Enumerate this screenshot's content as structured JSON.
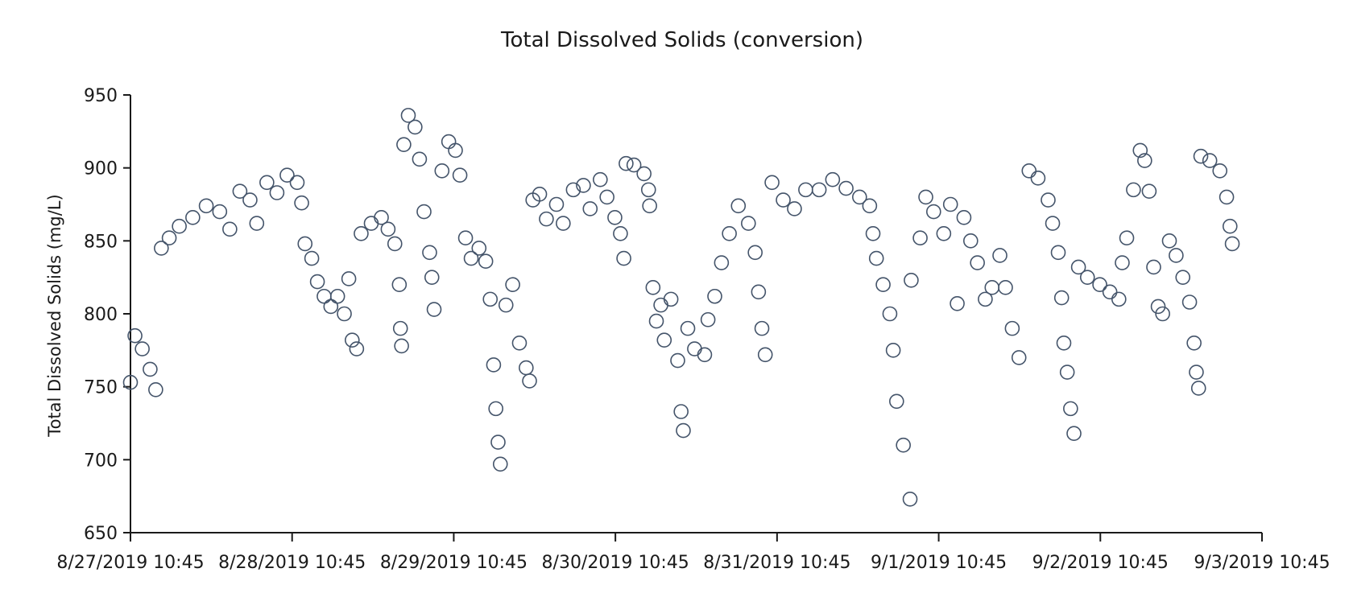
{
  "chart_data": {
    "type": "scatter",
    "title": "Total Dissolved Solids (conversion)",
    "xlabel": "",
    "ylabel": "Total Dissolved Solids  (mg/L)",
    "ylim": [
      650,
      950
    ],
    "yticks": [
      650,
      700,
      750,
      800,
      850,
      900,
      950
    ],
    "xlim": [
      "8/27/2019 10:45",
      "9/3/2019 10:45"
    ],
    "xticks": [
      "8/27/2019 10:45",
      "8/28/2019 10:45",
      "8/29/2019 10:45",
      "8/30/2019 10:45",
      "8/31/2019 10:45",
      "9/1/2019 10:45",
      "9/2/2019 10:45",
      "9/3/2019 10:45"
    ],
    "grid": false,
    "marker": "open-circle",
    "color": "#44546a",
    "series": [
      {
        "points": [
          [
            "8/27/2019 10:45",
            753
          ],
          [
            "8/27/2019 11:25",
            785
          ],
          [
            "8/27/2019 12:30",
            776
          ],
          [
            "8/27/2019 13:40",
            762
          ],
          [
            "8/27/2019 14:30",
            748
          ],
          [
            "8/27/2019 15:20",
            845
          ],
          [
            "8/27/2019 16:30",
            852
          ],
          [
            "8/27/2019 18:00",
            860
          ],
          [
            "8/27/2019 20:00",
            866
          ],
          [
            "8/27/2019 22:00",
            874
          ],
          [
            "8/28/2019 00:00",
            870
          ],
          [
            "8/28/2019 01:30",
            858
          ],
          [
            "8/28/2019 03:00",
            884
          ],
          [
            "8/28/2019 04:30",
            878
          ],
          [
            "8/28/2019 05:30",
            862
          ],
          [
            "8/28/2019 07:00",
            890
          ],
          [
            "8/28/2019 08:30",
            883
          ],
          [
            "8/28/2019 10:00",
            895
          ],
          [
            "8/28/2019 11:30",
            890
          ],
          [
            "8/28/2019 12:10",
            876
          ],
          [
            "8/28/2019 12:40",
            848
          ],
          [
            "8/28/2019 13:40",
            838
          ],
          [
            "8/28/2019 14:30",
            822
          ],
          [
            "8/28/2019 15:30",
            812
          ],
          [
            "8/28/2019 16:30",
            805
          ],
          [
            "8/28/2019 17:30",
            812
          ],
          [
            "8/28/2019 18:30",
            800
          ],
          [
            "8/28/2019 19:10",
            824
          ],
          [
            "8/28/2019 19:40",
            782
          ],
          [
            "8/28/2019 20:20",
            776
          ],
          [
            "8/28/2019 21:00",
            855
          ],
          [
            "8/28/2019 22:30",
            862
          ],
          [
            "8/29/2019 00:00",
            866
          ],
          [
            "8/29/2019 01:00",
            858
          ],
          [
            "8/29/2019 02:00",
            848
          ],
          [
            "8/29/2019 02:40",
            820
          ],
          [
            "8/29/2019 02:50",
            790
          ],
          [
            "8/29/2019 03:00",
            778
          ],
          [
            "8/29/2019 03:20",
            916
          ],
          [
            "8/29/2019 04:00",
            936
          ],
          [
            "8/29/2019 05:00",
            928
          ],
          [
            "8/29/2019 05:40",
            906
          ],
          [
            "8/29/2019 06:20",
            870
          ],
          [
            "8/29/2019 07:10",
            842
          ],
          [
            "8/29/2019 07:30",
            825
          ],
          [
            "8/29/2019 07:50",
            803
          ],
          [
            "8/29/2019 09:00",
            898
          ],
          [
            "8/29/2019 10:00",
            918
          ],
          [
            "8/29/2019 11:00",
            912
          ],
          [
            "8/29/2019 11:40",
            895
          ],
          [
            "8/29/2019 12:30",
            852
          ],
          [
            "8/29/2019 13:20",
            838
          ],
          [
            "8/29/2019 14:30",
            845
          ],
          [
            "8/29/2019 15:30",
            836
          ],
          [
            "8/29/2019 16:10",
            810
          ],
          [
            "8/29/2019 16:40",
            765
          ],
          [
            "8/29/2019 17:00",
            735
          ],
          [
            "8/29/2019 17:20",
            712
          ],
          [
            "8/29/2019 17:40",
            697
          ],
          [
            "8/29/2019 18:30",
            806
          ],
          [
            "8/29/2019 19:30",
            820
          ],
          [
            "8/29/2019 20:30",
            780
          ],
          [
            "8/29/2019 21:30",
            763
          ],
          [
            "8/29/2019 22:00",
            754
          ],
          [
            "8/29/2019 22:30",
            878
          ],
          [
            "8/29/2019 23:30",
            882
          ],
          [
            "8/30/2019 00:30",
            865
          ],
          [
            "8/30/2019 02:00",
            875
          ],
          [
            "8/30/2019 03:00",
            862
          ],
          [
            "8/30/2019 04:30",
            885
          ],
          [
            "8/30/2019 06:00",
            888
          ],
          [
            "8/30/2019 07:00",
            872
          ],
          [
            "8/30/2019 08:30",
            892
          ],
          [
            "8/30/2019 09:30",
            880
          ],
          [
            "8/30/2019 10:40",
            866
          ],
          [
            "8/30/2019 11:30",
            855
          ],
          [
            "8/30/2019 12:00",
            838
          ],
          [
            "8/30/2019 12:20",
            903
          ],
          [
            "8/30/2019 13:30",
            902
          ],
          [
            "8/30/2019 15:00",
            896
          ],
          [
            "8/30/2019 15:40",
            885
          ],
          [
            "8/30/2019 15:50",
            874
          ],
          [
            "8/30/2019 16:20",
            818
          ],
          [
            "8/30/2019 16:50",
            795
          ],
          [
            "8/30/2019 17:30",
            806
          ],
          [
            "8/30/2019 18:00",
            782
          ],
          [
            "8/30/2019 19:00",
            810
          ],
          [
            "8/30/2019 20:00",
            768
          ],
          [
            "8/30/2019 20:30",
            733
          ],
          [
            "8/30/2019 20:50",
            720
          ],
          [
            "8/30/2019 21:30",
            790
          ],
          [
            "8/30/2019 22:30",
            776
          ],
          [
            "8/31/2019 00:00",
            772
          ],
          [
            "8/31/2019 00:30",
            796
          ],
          [
            "8/31/2019 01:30",
            812
          ],
          [
            "8/31/2019 02:30",
            835
          ],
          [
            "8/31/2019 03:40",
            855
          ],
          [
            "8/31/2019 05:00",
            874
          ],
          [
            "8/31/2019 06:30",
            862
          ],
          [
            "8/31/2019 07:30",
            842
          ],
          [
            "8/31/2019 08:00",
            815
          ],
          [
            "8/31/2019 08:30",
            790
          ],
          [
            "8/31/2019 09:00",
            772
          ],
          [
            "8/31/2019 10:00",
            890
          ],
          [
            "8/31/2019 11:40",
            878
          ],
          [
            "8/31/2019 13:20",
            872
          ],
          [
            "8/31/2019 15:00",
            885
          ],
          [
            "8/31/2019 17:00",
            885
          ],
          [
            "8/31/2019 19:00",
            892
          ],
          [
            "8/31/2019 21:00",
            886
          ],
          [
            "8/31/2019 23:00",
            880
          ],
          [
            "9/1/2019 00:30",
            874
          ],
          [
            "9/1/2019 01:00",
            855
          ],
          [
            "9/1/2019 01:30",
            838
          ],
          [
            "9/1/2019 02:30",
            820
          ],
          [
            "9/1/2019 03:30",
            800
          ],
          [
            "9/1/2019 04:00",
            775
          ],
          [
            "9/1/2019 04:30",
            740
          ],
          [
            "9/1/2019 05:30",
            710
          ],
          [
            "9/1/2019 06:30",
            673
          ],
          [
            "9/1/2019 06:40",
            823
          ],
          [
            "9/1/2019 08:00",
            852
          ],
          [
            "9/1/2019 08:50",
            880
          ],
          [
            "9/1/2019 10:00",
            870
          ],
          [
            "9/1/2019 11:30",
            855
          ],
          [
            "9/1/2019 12:30",
            875
          ],
          [
            "9/1/2019 13:30",
            807
          ],
          [
            "9/1/2019 14:30",
            866
          ],
          [
            "9/1/2019 15:30",
            850
          ],
          [
            "9/1/2019 16:30",
            835
          ],
          [
            "9/1/2019 17:40",
            810
          ],
          [
            "9/1/2019 18:40",
            818
          ],
          [
            "9/1/2019 19:50",
            840
          ],
          [
            "9/1/2019 20:40",
            818
          ],
          [
            "9/1/2019 21:40",
            790
          ],
          [
            "9/1/2019 22:40",
            770
          ],
          [
            "9/2/2019 00:10",
            898
          ],
          [
            "9/2/2019 01:30",
            893
          ],
          [
            "9/2/2019 03:00",
            878
          ],
          [
            "9/2/2019 03:40",
            862
          ],
          [
            "9/2/2019 04:30",
            842
          ],
          [
            "9/2/2019 05:00",
            811
          ],
          [
            "9/2/2019 05:20",
            780
          ],
          [
            "9/2/2019 05:50",
            760
          ],
          [
            "9/2/2019 06:20",
            735
          ],
          [
            "9/2/2019 06:50",
            718
          ],
          [
            "9/2/2019 07:30",
            832
          ],
          [
            "9/2/2019 08:50",
            825
          ],
          [
            "9/2/2019 10:40",
            820
          ],
          [
            "9/2/2019 12:10",
            815
          ],
          [
            "9/2/2019 13:30",
            810
          ],
          [
            "9/2/2019 14:00",
            835
          ],
          [
            "9/2/2019 14:40",
            852
          ],
          [
            "9/2/2019 15:40",
            885
          ],
          [
            "9/2/2019 16:40",
            912
          ],
          [
            "9/2/2019 17:20",
            905
          ],
          [
            "9/2/2019 18:00",
            884
          ],
          [
            "9/2/2019 18:40",
            832
          ],
          [
            "9/2/2019 19:20",
            805
          ],
          [
            "9/2/2019 20:00",
            800
          ],
          [
            "9/2/2019 21:00",
            850
          ],
          [
            "9/2/2019 22:00",
            840
          ],
          [
            "9/2/2019 23:00",
            825
          ],
          [
            "9/3/2019 00:00",
            808
          ],
          [
            "9/3/2019 00:40",
            780
          ],
          [
            "9/3/2019 01:00",
            760
          ],
          [
            "9/3/2019 01:20",
            749
          ],
          [
            "9/3/2019 01:40",
            908
          ],
          [
            "9/3/2019 03:00",
            905
          ],
          [
            "9/3/2019 04:30",
            898
          ],
          [
            "9/3/2019 05:30",
            880
          ],
          [
            "9/3/2019 06:00",
            860
          ],
          [
            "9/3/2019 06:20",
            848
          ]
        ]
      }
    ]
  }
}
